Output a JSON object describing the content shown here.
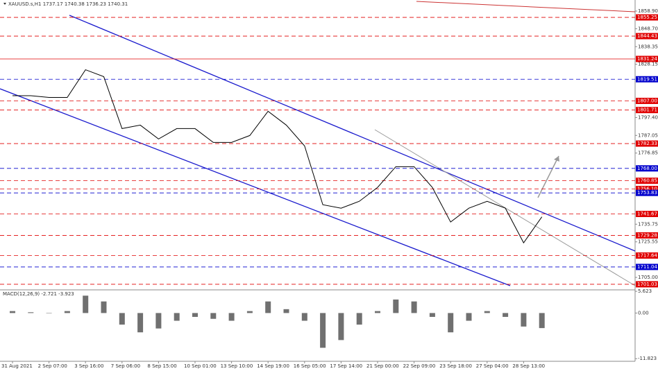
{
  "chart_data": [
    {
      "type": "line",
      "title": "XAUUSD.s,H1  1737.17 1740.38 1736.23 1740.31",
      "color": "#000000",
      "categories": [
        "31 Aug 2021",
        null,
        "2 Sep 07:00",
        null,
        "3 Sep 16:00",
        null,
        "7 Sep 06:00",
        null,
        "8 Sep 15:00",
        null,
        "10 Sep 01:00",
        null,
        "13 Sep 10:00",
        null,
        "14 Sep 19:00",
        null,
        "16 Sep 05:00",
        null,
        "17 Sep 14:00",
        null,
        "21 Sep 00:00",
        null,
        "22 Sep 09:00",
        null,
        "23 Sep 18:00",
        null,
        "27 Sep 04:00",
        null,
        "28 Sep 13:00",
        null
      ],
      "values": [
        1810,
        1810,
        1809,
        1809,
        1825,
        1821,
        1791,
        1793,
        1785,
        1791,
        1791,
        1783,
        1783,
        1787,
        1801,
        1793,
        1781,
        1747,
        1745,
        1749,
        1757,
        1769,
        1769,
        1757,
        1737,
        1745,
        1749,
        1745,
        1725,
        1740
      ],
      "ylim": [
        1697.8,
        1865.3
      ],
      "yticks": [
        {
          "value": 1858.9,
          "label": "1858.90"
        },
        {
          "value": 1848.7,
          "label": "1848.70"
        },
        {
          "value": 1838.35,
          "label": "1838.35"
        },
        {
          "value": 1828.15,
          "label": "1828.15"
        },
        {
          "value": 1797.4,
          "label": "1797.40"
        },
        {
          "value": 1787.05,
          "label": "1787.05"
        },
        {
          "value": 1776.85,
          "label": "1776.85"
        },
        {
          "value": 1735.75,
          "label": "1735.75"
        },
        {
          "value": 1725.55,
          "label": "1725.55"
        },
        {
          "value": 1705,
          "label": "1705.00"
        }
      ],
      "levels": [
        {
          "value": 1855.25,
          "label": "1855.25",
          "color": "#e00000",
          "dash": true
        },
        {
          "value": 1844.43,
          "label": "1844.43",
          "color": "#e00000",
          "dash": true
        },
        {
          "value": 1831.24,
          "label": "1831.24",
          "color": "#e00000",
          "dash": false
        },
        {
          "value": 1819.51,
          "label": "1819.51",
          "color": "#0000cd",
          "dash": true
        },
        {
          "value": 1807,
          "label": "1807.00",
          "color": "#e00000",
          "dash": true
        },
        {
          "value": 1801.71,
          "label": "1801.71",
          "color": "#e00000",
          "dash": true
        },
        {
          "value": 1782.33,
          "label": "1782.33",
          "color": "#e00000",
          "dash": true
        },
        {
          "value": 1768,
          "label": "1768.00",
          "color": "#0000cd",
          "dash": true
        },
        {
          "value": 1760.85,
          "label": "1760.85",
          "color": "#e00000",
          "dash": true
        },
        {
          "value": 1756.1,
          "label": "1756.10",
          "color": "#e00000",
          "dash": true
        },
        {
          "value": 1753.83,
          "label": "1753.83",
          "color": "#0000cd",
          "dash": true
        },
        {
          "value": 1741.67,
          "label": "1741.67",
          "color": "#e00000",
          "dash": true
        },
        {
          "value": 1729.28,
          "label": "1729.28",
          "color": "#e00000",
          "dash": true
        },
        {
          "value": 1717.64,
          "label": "1717.64",
          "color": "#e00000",
          "dash": true
        },
        {
          "value": 1711.04,
          "label": "1711.04",
          "color": "#0000cd",
          "dash": true
        },
        {
          "value": 1701.03,
          "label": "1701.03",
          "color": "#e00000",
          "dash": true
        }
      ]
    },
    {
      "type": "bar",
      "title": "MACD(12,26,9) -2.721 -3.923",
      "color": "#707070",
      "values": [
        0.5,
        0.2,
        0,
        0.5,
        4.5,
        3,
        -3,
        -5,
        -4,
        -2,
        -1,
        -1.5,
        -2,
        0.5,
        3,
        1,
        -2,
        -9,
        -7,
        -3,
        0.5,
        3.5,
        3,
        -1,
        -5,
        -2,
        0.5,
        -1,
        -3.5,
        -3.9
      ],
      "ylim": [
        -12.5,
        6.0
      ],
      "yticks": [
        5.623,
        {
          "value": 0,
          "label": "0.00"
        },
        -11.823
      ]
    }
  ]
}
